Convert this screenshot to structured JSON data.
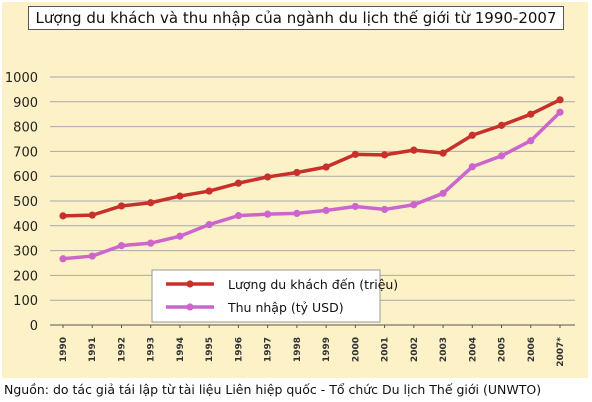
{
  "chart_data": {
    "type": "line",
    "title": "Lượng du khách và thu nhập của ngành du lịch thế giới từ 1990-2007",
    "categories": [
      "1990",
      "1991",
      "1992",
      "1993",
      "1994",
      "1995",
      "1996",
      "1997",
      "1998",
      "1999",
      "2000",
      "2001",
      "2002",
      "2003",
      "2004",
      "2005",
      "2006",
      "2007*"
    ],
    "series": [
      {
        "name": "Lượng du khách đến (triệu)",
        "color": "#c8302c",
        "values": [
          440,
          443,
          480,
          493,
          520,
          540,
          572,
          597,
          615,
          637,
          688,
          686,
          705,
          693,
          765,
          805,
          850,
          908
        ]
      },
      {
        "name": "Thu nhập (tỷ USD)",
        "color": "#cc66cc",
        "values": [
          267,
          278,
          320,
          330,
          358,
          405,
          441,
          447,
          450,
          462,
          478,
          466,
          485,
          531,
          638,
          682,
          743,
          858
        ]
      }
    ],
    "ylim": [
      0,
      1000
    ],
    "yticks": [
      0,
      100,
      200,
      300,
      400,
      500,
      600,
      700,
      800,
      900,
      1000
    ],
    "grid": true,
    "legend_position": "bottom-center",
    "background": "#fdf2c7",
    "grid_color": "#a8a8a8"
  },
  "source_note": "Nguồn: do tác giả tái lập từ tài liệu Liên hiệp quốc - Tổ chức Du lịch Thế giới (UNWTO)"
}
